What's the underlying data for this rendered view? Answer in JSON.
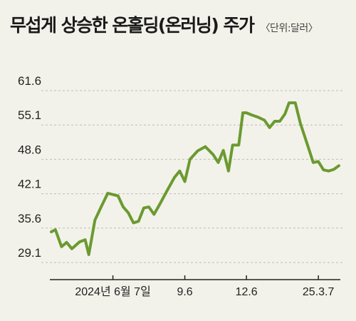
{
  "chart_data": {
    "type": "line",
    "title": "무섭게 상승한 온홀딩(온러닝) 주가",
    "unit": "〈단위:달러〉",
    "yticks": [
      "61.6",
      "55.1",
      "48.6",
      "42.1",
      "35.6",
      "29.1"
    ],
    "ytick_values": [
      61.6,
      55.1,
      48.6,
      42.1,
      35.6,
      29.1
    ],
    "ylim": [
      29.1,
      61.6
    ],
    "xticks": [
      "2024년 6월 7일",
      "9.6",
      "12.6",
      "25.3.7"
    ],
    "xtick_positions": [
      12,
      26,
      38,
      52
    ],
    "xlim": [
      0,
      56
    ],
    "grid": true,
    "colors": {
      "line": "#6b9a30",
      "background": "#f2f2ea"
    },
    "series": [
      {
        "values": [
          [
            0,
            34.9
          ],
          [
            0.8,
            35.3
          ],
          [
            2,
            32.1
          ],
          [
            3,
            32.9
          ],
          [
            4,
            31.7
          ],
          [
            5.5,
            33.0
          ],
          [
            6.6,
            33.4
          ],
          [
            7.3,
            30.6
          ],
          [
            8.5,
            37.1
          ],
          [
            9.8,
            39.8
          ],
          [
            11,
            42.2
          ],
          [
            13,
            41.7
          ],
          [
            14,
            39.6
          ],
          [
            15,
            38.5
          ],
          [
            16,
            36.6
          ],
          [
            17,
            36.9
          ],
          [
            18,
            39.4
          ],
          [
            19,
            39.6
          ],
          [
            20,
            38.2
          ],
          [
            21,
            39.9
          ],
          [
            22.5,
            42.6
          ],
          [
            24,
            45.2
          ],
          [
            25,
            46.4
          ],
          [
            26,
            44.4
          ],
          [
            27,
            48.6
          ],
          [
            28.5,
            50.2
          ],
          [
            30,
            51.0
          ],
          [
            31.5,
            49.5
          ],
          [
            32.5,
            48.0
          ],
          [
            33.5,
            50.3
          ],
          [
            34.5,
            46.4
          ],
          [
            35.3,
            51.3
          ],
          [
            36.5,
            51.3
          ],
          [
            37.3,
            57.4
          ],
          [
            38,
            57.4
          ],
          [
            39,
            57.0
          ],
          [
            40.2,
            56.6
          ],
          [
            41.5,
            56.0
          ],
          [
            42.5,
            54.6
          ],
          [
            43.5,
            55.8
          ],
          [
            44.5,
            55.8
          ],
          [
            45.5,
            57.2
          ],
          [
            46.3,
            59.3
          ],
          [
            47.5,
            59.3
          ],
          [
            48.5,
            55.4
          ],
          [
            50,
            51.0
          ],
          [
            51,
            48.0
          ],
          [
            52,
            48.2
          ],
          [
            53,
            46.6
          ],
          [
            54,
            46.4
          ],
          [
            55,
            46.7
          ],
          [
            56,
            47.4
          ]
        ]
      }
    ]
  }
}
